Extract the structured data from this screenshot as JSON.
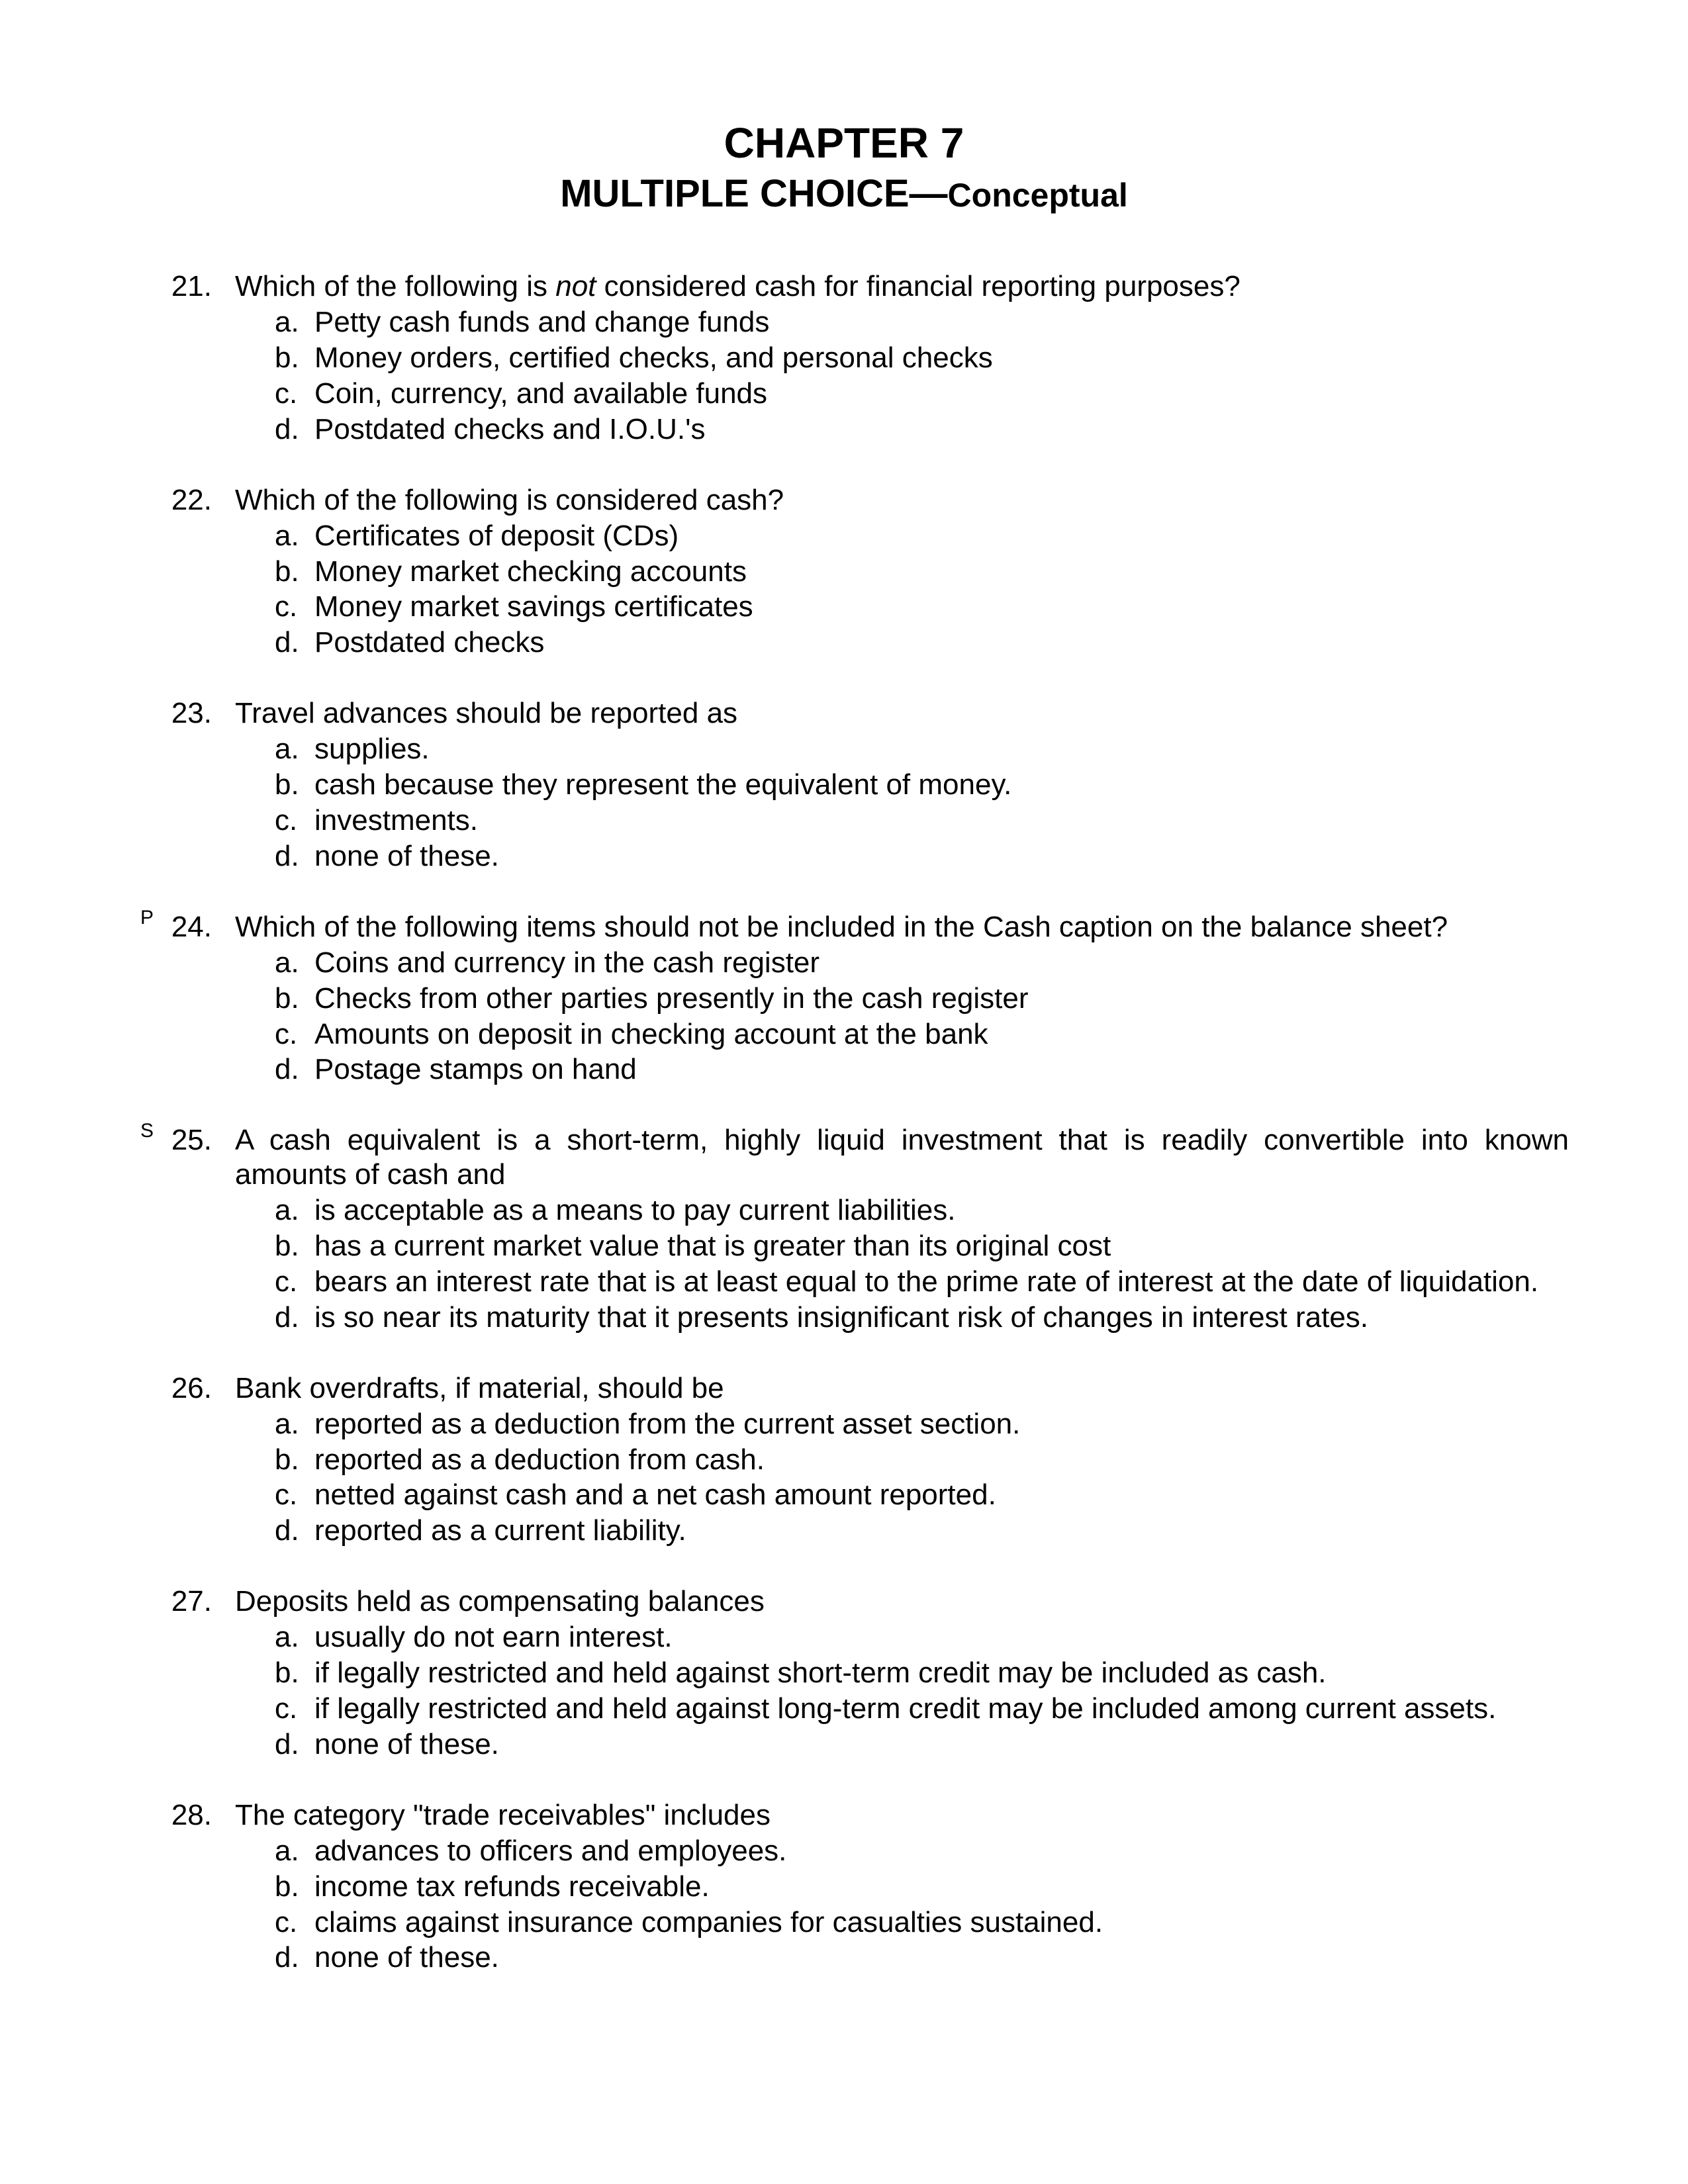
{
  "title_line1": "CHAPTER 7",
  "title_line2a": "MULTIPLE CHOICE—",
  "title_line2b": "Conceptual",
  "questions": [
    {
      "number": "21.",
      "sup": "",
      "justified": false,
      "stem_parts": [
        {
          "text": "Which of the following is ",
          "italic": false
        },
        {
          "text": "not",
          "italic": true
        },
        {
          "text": " considered cash for financial reporting purposes?",
          "italic": false
        }
      ],
      "options": [
        {
          "label": "a.",
          "text": "Petty cash funds and change funds"
        },
        {
          "label": "b.",
          "text": "Money orders, certified checks, and personal checks"
        },
        {
          "label": "c.",
          "text": "Coin, currency, and available funds"
        },
        {
          "label": "d.",
          "text": "Postdated checks and I.O.U.'s"
        }
      ]
    },
    {
      "number": "22.",
      "sup": "",
      "justified": false,
      "stem_parts": [
        {
          "text": "Which of the following is considered cash?",
          "italic": false
        }
      ],
      "options": [
        {
          "label": "a.",
          "text": "Certificates of deposit (CDs)"
        },
        {
          "label": "b.",
          "text": "Money market checking accounts"
        },
        {
          "label": "c.",
          "text": "Money market savings certificates"
        },
        {
          "label": "d.",
          "text": "Postdated checks"
        }
      ]
    },
    {
      "number": "23.",
      "sup": "",
      "justified": false,
      "stem_parts": [
        {
          "text": "Travel advances should be reported as",
          "italic": false
        }
      ],
      "options": [
        {
          "label": "a.",
          "text": "supplies."
        },
        {
          "label": "b.",
          "text": "cash because they represent the equivalent of money."
        },
        {
          "label": "c.",
          "text": "investments."
        },
        {
          "label": "d.",
          "text": "none of these."
        }
      ]
    },
    {
      "number": "24.",
      "sup": "P",
      "justified": false,
      "stem_parts": [
        {
          "text": "Which of the following items should not be included in the Cash caption on the balance sheet?",
          "italic": false
        }
      ],
      "options": [
        {
          "label": "a.",
          "text": "Coins and currency in the cash register"
        },
        {
          "label": "b.",
          "text": "Checks from other parties presently in the cash register"
        },
        {
          "label": "c.",
          "text": "Amounts on deposit in checking account at the bank"
        },
        {
          "label": "d.",
          "text": "Postage stamps on hand"
        }
      ]
    },
    {
      "number": "25.",
      "sup": "S",
      "justified": true,
      "stem_parts": [
        {
          "text": "A cash equivalent is a short-term, highly liquid investment that is readily convertible into known amounts of cash and",
          "italic": false
        }
      ],
      "options": [
        {
          "label": "a.",
          "text": "is acceptable as a means to pay current liabilities."
        },
        {
          "label": "b.",
          "text": "has a current market value that is greater than its original cost"
        },
        {
          "label": "c.",
          "text": "bears an interest rate that is at least equal to the prime rate of interest at the date of liquidation."
        },
        {
          "label": "d.",
          "text": "is so near its maturity that it presents insignificant risk of changes in interest rates."
        }
      ]
    },
    {
      "number": "26.",
      "sup": "",
      "justified": false,
      "stem_parts": [
        {
          "text": "Bank overdrafts, if material, should be",
          "italic": false
        }
      ],
      "options": [
        {
          "label": "a.",
          "text": "reported as a deduction from the current asset section."
        },
        {
          "label": "b.",
          "text": "reported as a deduction from cash."
        },
        {
          "label": "c.",
          "text": "netted against cash and a net cash amount reported."
        },
        {
          "label": "d.",
          "text": "reported as a current liability."
        }
      ]
    },
    {
      "number": "27.",
      "sup": "",
      "justified": false,
      "stem_parts": [
        {
          "text": "Deposits held as compensating balances",
          "italic": false
        }
      ],
      "options": [
        {
          "label": "a.",
          "text": "usually do not earn interest."
        },
        {
          "label": "b.",
          "text": "if legally restricted and held against short-term credit may be included as cash."
        },
        {
          "label": "c.",
          "text": "if legally restricted and held against long-term credit may be included among current assets."
        },
        {
          "label": "d.",
          "text": "none of these."
        }
      ]
    },
    {
      "number": "28.",
      "sup": "",
      "justified": false,
      "stem_parts": [
        {
          "text": "The category \"trade receivables\" includes",
          "italic": false
        }
      ],
      "options": [
        {
          "label": "a.",
          "text": "advances to officers and employees."
        },
        {
          "label": "b.",
          "text": "income tax refunds receivable."
        },
        {
          "label": "c.",
          "text": "claims against insurance companies for casualties sustained."
        },
        {
          "label": "d.",
          "text": "none of these."
        }
      ]
    }
  ]
}
